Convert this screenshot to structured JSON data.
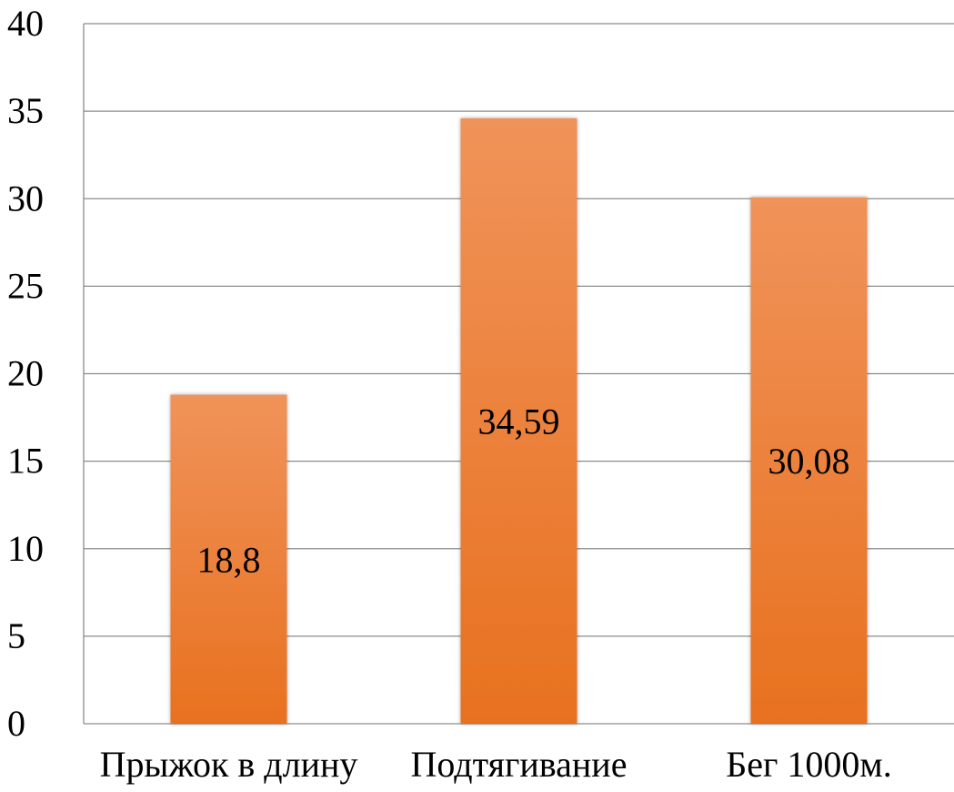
{
  "chart_data": {
    "type": "bar",
    "categories": [
      "Прыжок в длину",
      "Подтягивание",
      "Бег 1000м."
    ],
    "values": [
      18.8,
      34.59,
      30.08
    ],
    "data_labels": [
      "18,8",
      "34,59",
      "30,08"
    ],
    "ylim": [
      0,
      40
    ],
    "yticks": [
      0,
      5,
      10,
      15,
      20,
      25,
      30,
      35,
      40
    ],
    "ytick_labels": [
      "0",
      "5",
      "10",
      "15",
      "20",
      "25",
      "30",
      "35",
      "40"
    ],
    "grid": true,
    "legend": "none",
    "colors": {
      "bar_top": "#F0935A",
      "bar_bottom": "#E8711F",
      "grid": "#8C8C8C"
    }
  }
}
